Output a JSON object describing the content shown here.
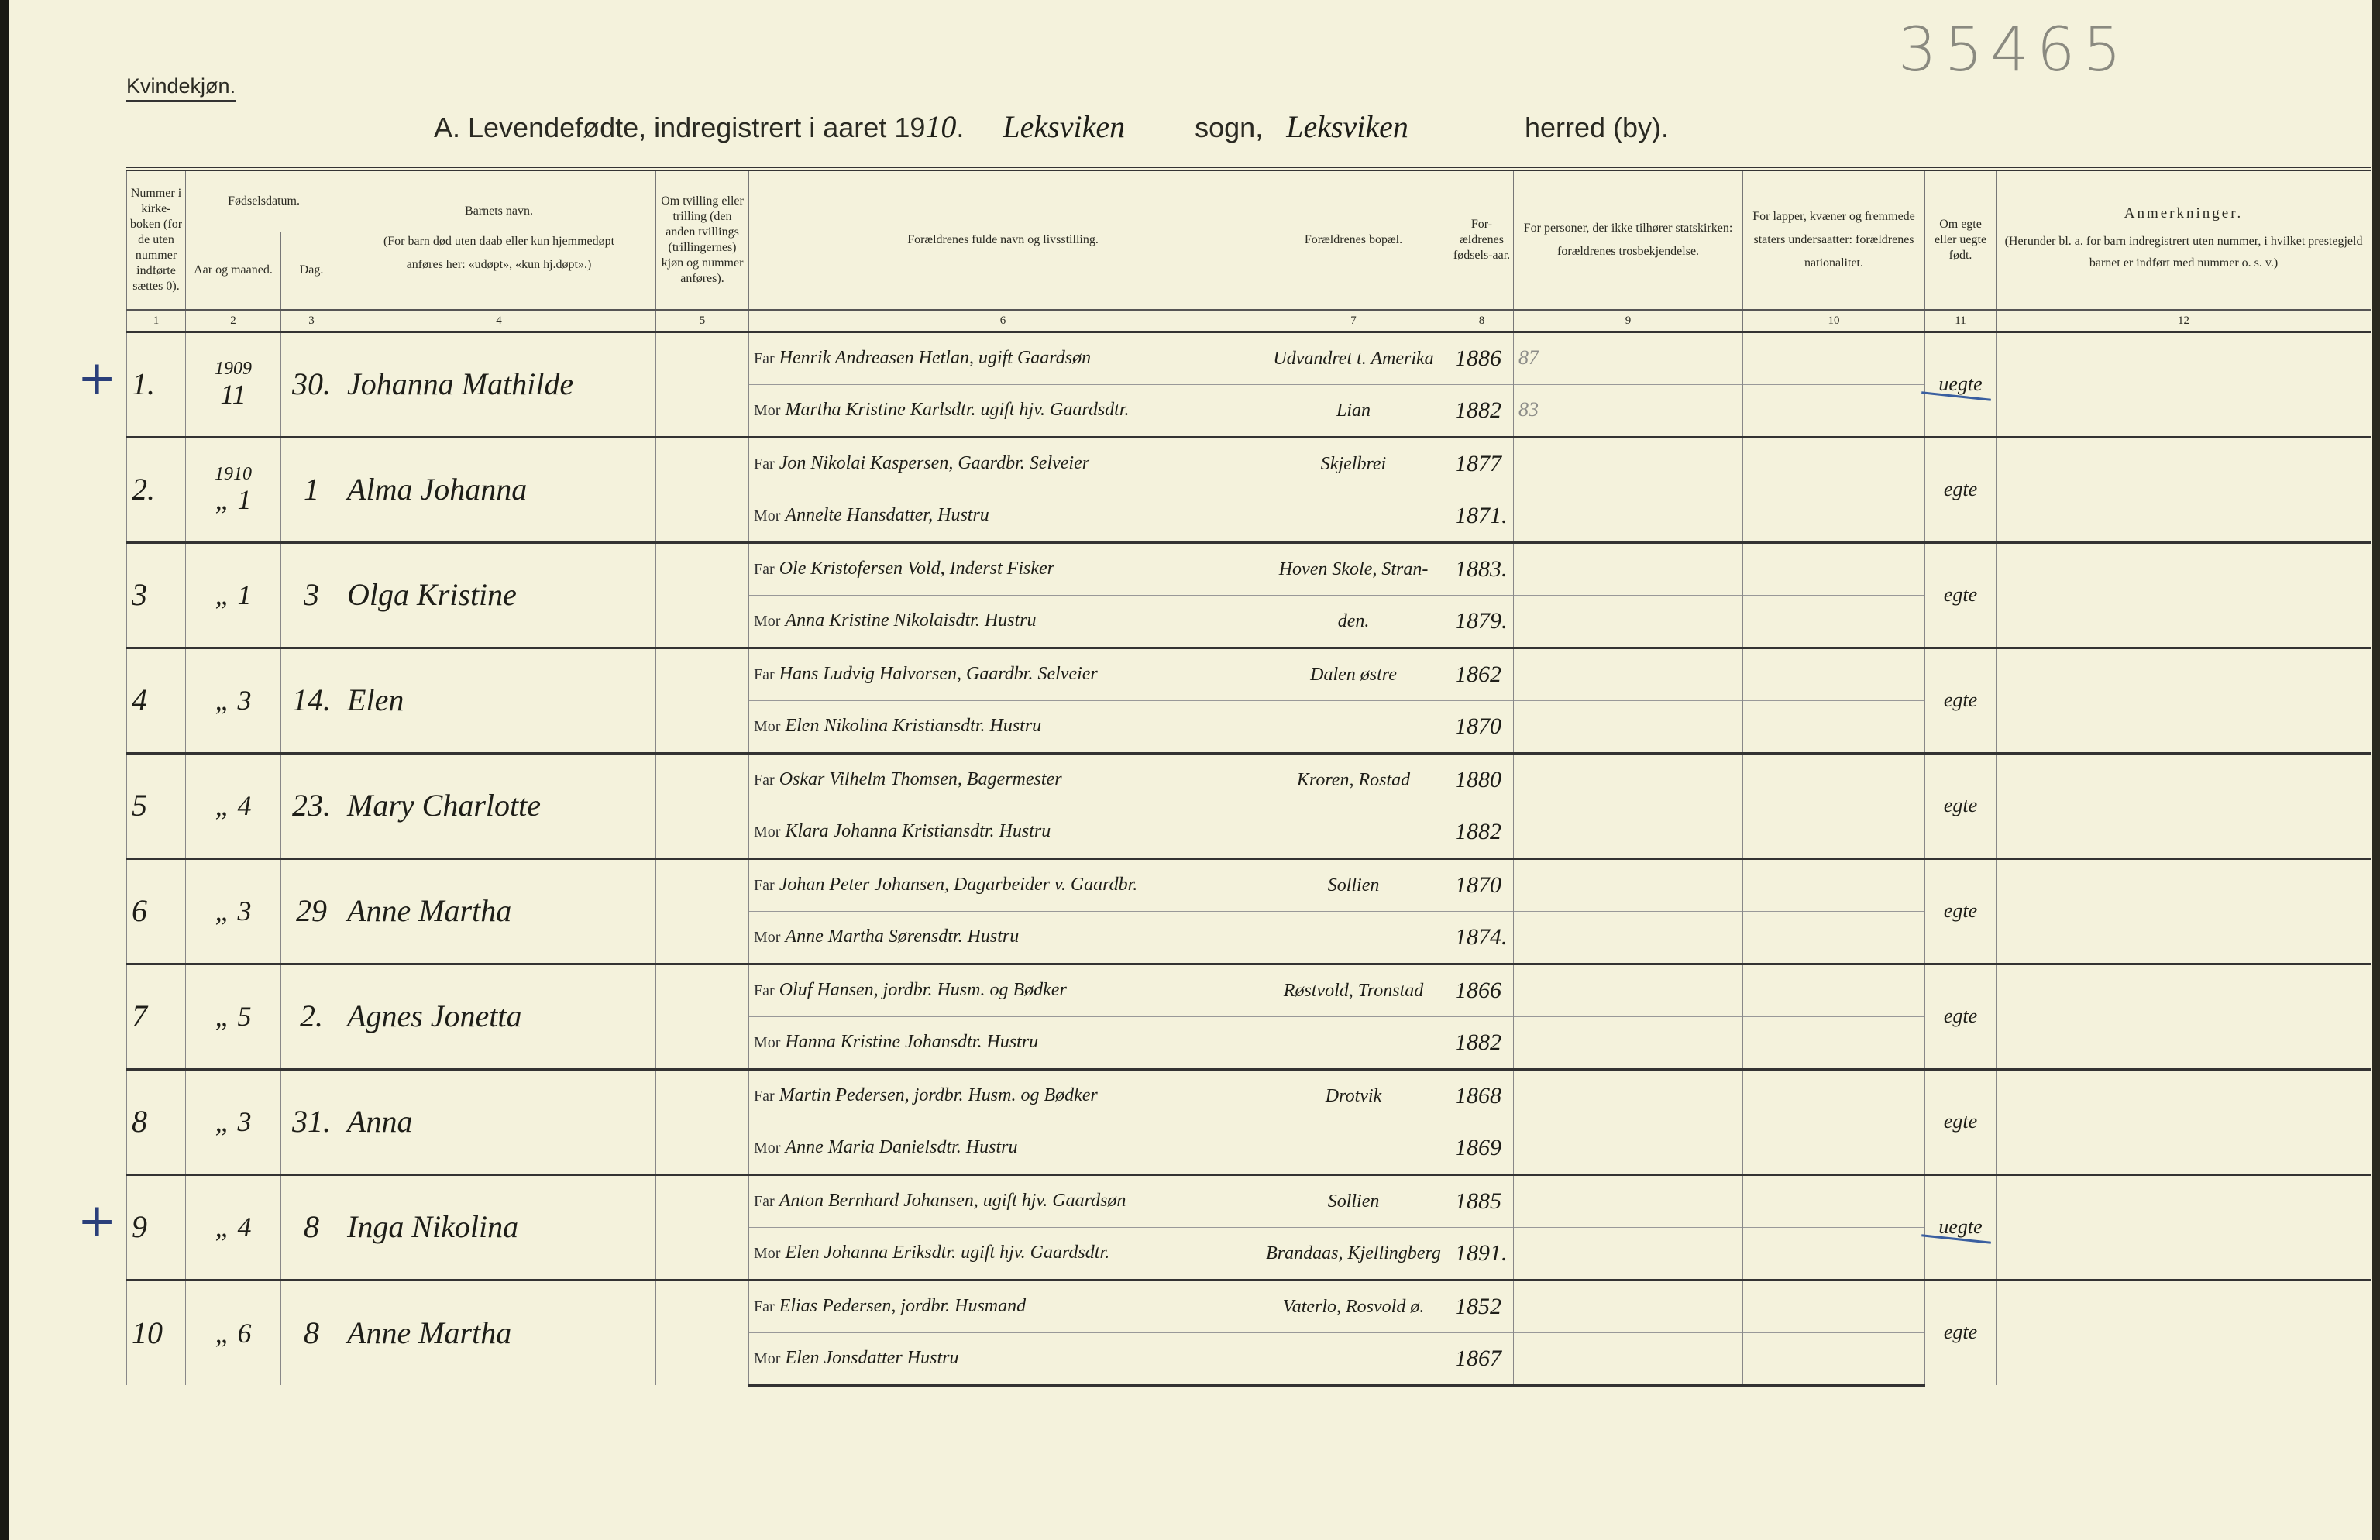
{
  "header": {
    "sex_label": "Kvindekjøn.",
    "title_prefix": "A.  Levendefødte, indregistrert i aaret 19",
    "year_handwritten": "10",
    "parish_handwritten": "Leksviken",
    "parish_label": "sogn,",
    "district_handwritten": "Leksviken",
    "district_label": "herred (by).",
    "archive_stamp": "35465"
  },
  "columns": {
    "c1": "Nummer i kirke-boken (for de uten nummer indførte sættes 0).",
    "c23_group": "Fødselsdatum.",
    "c2": "Aar og maaned.",
    "c3": "Dag.",
    "c4_title": "Barnets navn.",
    "c4_note": "(For barn død uten daab eller kun hjemmedøpt anføres her: «udøpt», «kun hj.døpt».)",
    "c5": "Om tvilling eller trilling (den anden tvillings (trillingernes) kjøn og nummer anføres).",
    "c6": "Forældrenes fulde navn og livsstilling.",
    "c7": "Forældrenes bopæl.",
    "c8": "For-ældrenes fødsels-aar.",
    "c9": "For personer, der ikke tilhører statskirken: forældrenes trosbekjendelse.",
    "c10": "For lapper, kvæner og fremmede staters undersaatter: forældrenes nationalitet.",
    "c11": "Om egte eller uegte født.",
    "c12_title": "Anmerkninger.",
    "c12_note": "(Herunder bl. a. for barn indregistrert uten nummer, i hvilket prestegjeld barnet er indført med nummer o. s. v.)",
    "numbers": [
      "1",
      "2",
      "3",
      "4",
      "5",
      "6",
      "7",
      "8",
      "9",
      "10",
      "11",
      "12"
    ]
  },
  "labels": {
    "far": "Far",
    "mor": "Mor"
  },
  "entries": [
    {
      "nr": "1.",
      "year": "1909",
      "month": "11",
      "day": "30.",
      "name": "Johanna Mathilde",
      "far": "Henrik Andreasen Hetlan, ugift Gaardsøn",
      "mor": "Martha Kristine Karlsdtr. ugift hjv. Gaardsdtr.",
      "bopel_far": "Udvandret t. Amerika",
      "bopel_mor": "Lian",
      "far_year": "1886",
      "mor_year": "1882",
      "pencil_far": "87",
      "pencil_mor": "83",
      "legit": "uegte",
      "mark": "+"
    },
    {
      "nr": "2.",
      "year": "1910",
      "month": "„ 1",
      "day": "1",
      "name": "Alma Johanna",
      "far": "Jon Nikolai Kaspersen, Gaardbr. Selveier",
      "mor": "Annelte Hansdatter, Hustru",
      "bopel_far": "Skjelbrei",
      "bopel_mor": "",
      "far_year": "1877",
      "mor_year": "1871.",
      "legit": "egte"
    },
    {
      "nr": "3",
      "year": "",
      "month": "„ 1",
      "day": "3",
      "name": "Olga Kristine",
      "far": "Ole Kristofersen Vold, Inderst Fisker",
      "mor": "Anna Kristine Nikolaisdtr. Hustru",
      "bopel_far": "Hoven Skole, Stran-",
      "bopel_mor": "den.",
      "far_year": "1883.",
      "mor_year": "1879.",
      "legit": "egte"
    },
    {
      "nr": "4",
      "year": "",
      "month": "„ 3",
      "day": "14.",
      "name": "Elen",
      "far": "Hans Ludvig Halvorsen, Gaardbr. Selveier",
      "mor": "Elen Nikolina Kristiansdtr. Hustru",
      "bopel_far": "Dalen østre",
      "bopel_mor": "",
      "far_year": "1862",
      "mor_year": "1870",
      "legit": "egte"
    },
    {
      "nr": "5",
      "year": "",
      "month": "„ 4",
      "day": "23.",
      "name": "Mary Charlotte",
      "far": "Oskar Vilhelm Thomsen, Bagermester",
      "mor": "Klara Johanna Kristiansdtr. Hustru",
      "bopel_far": "Kroren, Rostad",
      "bopel_mor": "",
      "far_year": "1880",
      "mor_year": "1882",
      "legit": "egte"
    },
    {
      "nr": "6",
      "year": "",
      "month": "„ 3",
      "day": "29",
      "name": "Anne Martha",
      "far": "Johan Peter Johansen, Dagarbeider v. Gaardbr.",
      "mor": "Anne Martha Sørensdtr. Hustru",
      "bopel_far": "Sollien",
      "bopel_mor": "",
      "far_year": "1870",
      "mor_year": "1874.",
      "legit": "egte"
    },
    {
      "nr": "7",
      "year": "",
      "month": "„ 5",
      "day": "2.",
      "name": "Agnes Jonetta",
      "far": "Oluf Hansen, jordbr. Husm. og Bødker",
      "mor": "Hanna Kristine Johansdtr. Hustru",
      "bopel_far": "Røstvold, Tronstad",
      "bopel_mor": "",
      "far_year": "1866",
      "mor_year": "1882",
      "legit": "egte"
    },
    {
      "nr": "8",
      "year": "",
      "month": "„ 3",
      "day": "31.",
      "name": "Anna",
      "far": "Martin Pedersen, jordbr. Husm. og Bødker",
      "mor": "Anne Maria Danielsdtr. Hustru",
      "bopel_far": "Drotvik",
      "bopel_mor": "",
      "far_year": "1868",
      "mor_year": "1869",
      "legit": "egte"
    },
    {
      "nr": "9",
      "year": "",
      "month": "„ 4",
      "day": "8",
      "name": "Inga Nikolina",
      "far": "Anton Bernhard Johansen, ugift hjv. Gaardsøn",
      "mor": "Elen Johanna Eriksdtr. ugift hjv. Gaardsdtr.",
      "bopel_far": "Sollien",
      "bopel_mor": "Brandaas, Kjellingberg",
      "far_year": "1885",
      "mor_year": "1891.",
      "legit": "uegte",
      "mark": "+"
    },
    {
      "nr": "10",
      "year": "",
      "month": "„ 6",
      "day": "8",
      "name": "Anne Martha",
      "far": "Elias Pedersen, jordbr. Husmand",
      "mor": "Elen Jonsdatter Hustru",
      "bopel_far": "Vaterlo, Rosvold ø.",
      "bopel_mor": "",
      "far_year": "1852",
      "mor_year": "1867",
      "legit": "egte"
    }
  ]
}
